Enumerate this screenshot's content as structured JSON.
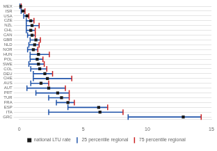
{
  "chart_data": {
    "type": "dot",
    "orientation": "horizontal",
    "categories": [
      "MEX",
      "ISR",
      "USA",
      "CZE",
      "NZL",
      "CHL",
      "CAN",
      "GBR",
      "NLD",
      "NOR",
      "HUN",
      "POL",
      "SWE",
      "COL",
      "DEU",
      "CHE",
      "AUS",
      "AUT",
      "PRT",
      "TUR",
      "FRA",
      "ESP",
      "ITA",
      "GRC"
    ],
    "series": [
      {
        "name": "national LTU rate",
        "color": "#1a1a1a",
        "marker": "square",
        "values": [
          0.1,
          0.3,
          0.6,
          0.9,
          1.0,
          0.9,
          1.0,
          1.3,
          1.2,
          1.1,
          1.5,
          1.4,
          1.5,
          1.6,
          2.0,
          2.2,
          1.7,
          2.3,
          3.0,
          3.3,
          3.8,
          6.2,
          6.3,
          12.8
        ]
      },
      {
        "name": "25 percentile regional",
        "color": "#2255aa",
        "marker": "vline",
        "values": [
          0.05,
          0.15,
          0.35,
          0.55,
          0.55,
          0.55,
          0.65,
          0.85,
          0.75,
          0.65,
          0.85,
          0.85,
          0.75,
          0.9,
          1.1,
          1.1,
          0.9,
          0.6,
          1.3,
          2.3,
          2.9,
          3.8,
          2.3,
          8.5
        ]
      },
      {
        "name": "75 percentile regional",
        "color": "#cc2222",
        "marker": "vline",
        "values": [
          0.15,
          0.45,
          0.75,
          1.15,
          1.55,
          1.25,
          1.25,
          1.65,
          1.55,
          1.45,
          2.35,
          1.85,
          1.95,
          2.15,
          2.6,
          4.1,
          2.3,
          3.6,
          3.9,
          3.9,
          4.3,
          6.9,
          8.1,
          14.2
        ]
      }
    ],
    "xlim": [
      0,
      15
    ],
    "xticks": [
      0,
      5,
      10,
      15
    ],
    "grid": "y",
    "legend": "bottom"
  }
}
